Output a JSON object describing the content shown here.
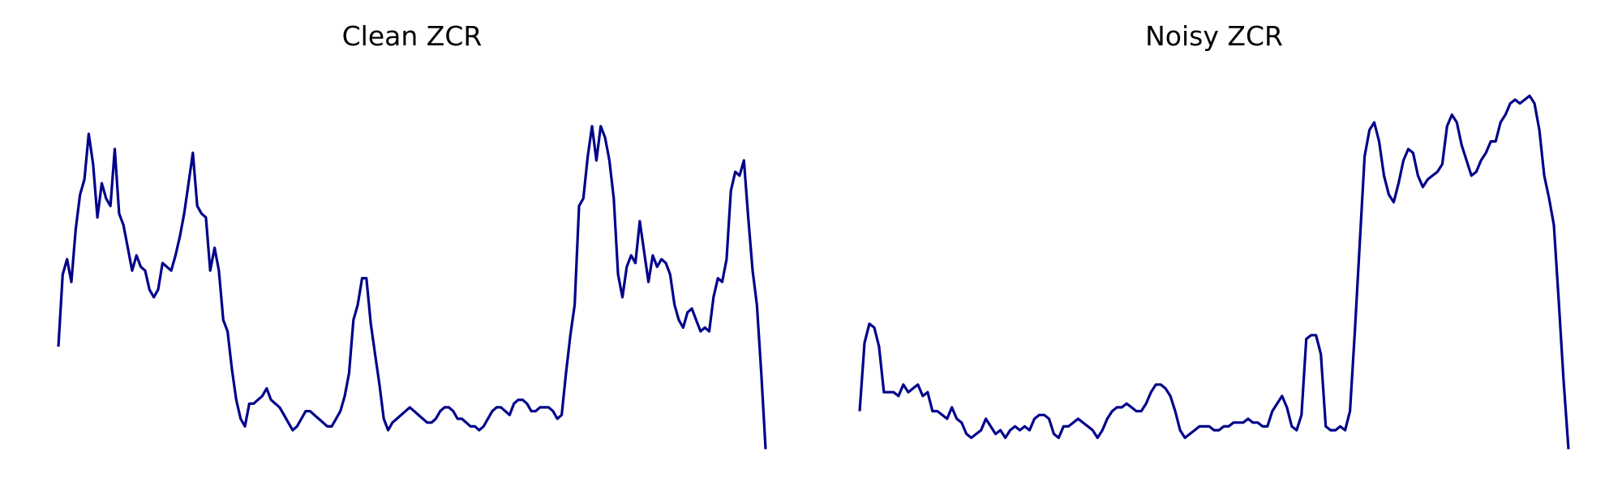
{
  "chart_data": [
    {
      "type": "line",
      "title": "Clean ZCR",
      "color": "#00008b",
      "axes_visible": false,
      "grid": false,
      "ylim": [
        -0.05,
        1.05
      ],
      "values": [
        0.27,
        0.46,
        0.5,
        0.44,
        0.58,
        0.67,
        0.71,
        0.83,
        0.75,
        0.61,
        0.7,
        0.66,
        0.64,
        0.79,
        0.62,
        0.59,
        0.53,
        0.47,
        0.51,
        0.48,
        0.47,
        0.42,
        0.4,
        0.42,
        0.49,
        0.48,
        0.47,
        0.51,
        0.56,
        0.62,
        0.7,
        0.78,
        0.64,
        0.62,
        0.61,
        0.47,
        0.53,
        0.47,
        0.34,
        0.31,
        0.21,
        0.13,
        0.08,
        0.06,
        0.12,
        0.12,
        0.13,
        0.14,
        0.16,
        0.13,
        0.12,
        0.11,
        0.09,
        0.07,
        0.05,
        0.06,
        0.08,
        0.1,
        0.1,
        0.09,
        0.08,
        0.07,
        0.06,
        0.06,
        0.08,
        0.1,
        0.14,
        0.2,
        0.34,
        0.38,
        0.45,
        0.45,
        0.33,
        0.25,
        0.17,
        0.08,
        0.05,
        0.07,
        0.08,
        0.09,
        0.1,
        0.11,
        0.1,
        0.09,
        0.08,
        0.07,
        0.07,
        0.08,
        0.1,
        0.11,
        0.11,
        0.1,
        0.08,
        0.08,
        0.07,
        0.06,
        0.06,
        0.05,
        0.06,
        0.08,
        0.1,
        0.11,
        0.11,
        0.1,
        0.09,
        0.12,
        0.13,
        0.13,
        0.12,
        0.1,
        0.1,
        0.11,
        0.11,
        0.11,
        0.1,
        0.08,
        0.09,
        0.2,
        0.3,
        0.38,
        0.64,
        0.66,
        0.77,
        0.85,
        0.76,
        0.85,
        0.82,
        0.76,
        0.66,
        0.46,
        0.4,
        0.48,
        0.51,
        0.49,
        0.6,
        0.52,
        0.44,
        0.51,
        0.48,
        0.5,
        0.49,
        0.46,
        0.38,
        0.34,
        0.32,
        0.36,
        0.37,
        0.34,
        0.31,
        0.32,
        0.31,
        0.4,
        0.45,
        0.44,
        0.5,
        0.68,
        0.73,
        0.72,
        0.76,
        0.61,
        0.47,
        0.38,
        0.2,
        0.0
      ]
    },
    {
      "type": "line",
      "title": "Noisy ZCR",
      "color": "#00008b",
      "axes_visible": false,
      "grid": false,
      "ylim": [
        -0.05,
        1.05
      ],
      "values": [
        0.1,
        0.28,
        0.33,
        0.32,
        0.27,
        0.15,
        0.15,
        0.15,
        0.14,
        0.17,
        0.15,
        0.16,
        0.17,
        0.14,
        0.15,
        0.1,
        0.1,
        0.09,
        0.08,
        0.11,
        0.08,
        0.07,
        0.04,
        0.03,
        0.04,
        0.05,
        0.08,
        0.06,
        0.04,
        0.05,
        0.03,
        0.05,
        0.06,
        0.05,
        0.06,
        0.05,
        0.08,
        0.09,
        0.09,
        0.08,
        0.04,
        0.03,
        0.06,
        0.06,
        0.07,
        0.08,
        0.07,
        0.06,
        0.05,
        0.03,
        0.05,
        0.08,
        0.1,
        0.11,
        0.11,
        0.12,
        0.11,
        0.1,
        0.1,
        0.12,
        0.15,
        0.17,
        0.17,
        0.16,
        0.14,
        0.1,
        0.05,
        0.03,
        0.04,
        0.05,
        0.06,
        0.06,
        0.06,
        0.05,
        0.05,
        0.06,
        0.06,
        0.07,
        0.07,
        0.07,
        0.08,
        0.07,
        0.07,
        0.06,
        0.06,
        0.1,
        0.12,
        0.14,
        0.11,
        0.06,
        0.05,
        0.09,
        0.29,
        0.3,
        0.3,
        0.25,
        0.06,
        0.05,
        0.05,
        0.06,
        0.05,
        0.1,
        0.31,
        0.54,
        0.77,
        0.84,
        0.86,
        0.81,
        0.72,
        0.67,
        0.65,
        0.7,
        0.76,
        0.79,
        0.78,
        0.72,
        0.69,
        0.71,
        0.72,
        0.73,
        0.75,
        0.85,
        0.88,
        0.86,
        0.8,
        0.76,
        0.72,
        0.73,
        0.76,
        0.78,
        0.81,
        0.81,
        0.86,
        0.88,
        0.91,
        0.92,
        0.91,
        0.92,
        0.93,
        0.91,
        0.84,
        0.72,
        0.66,
        0.59,
        0.39,
        0.18,
        0.0
      ]
    }
  ]
}
